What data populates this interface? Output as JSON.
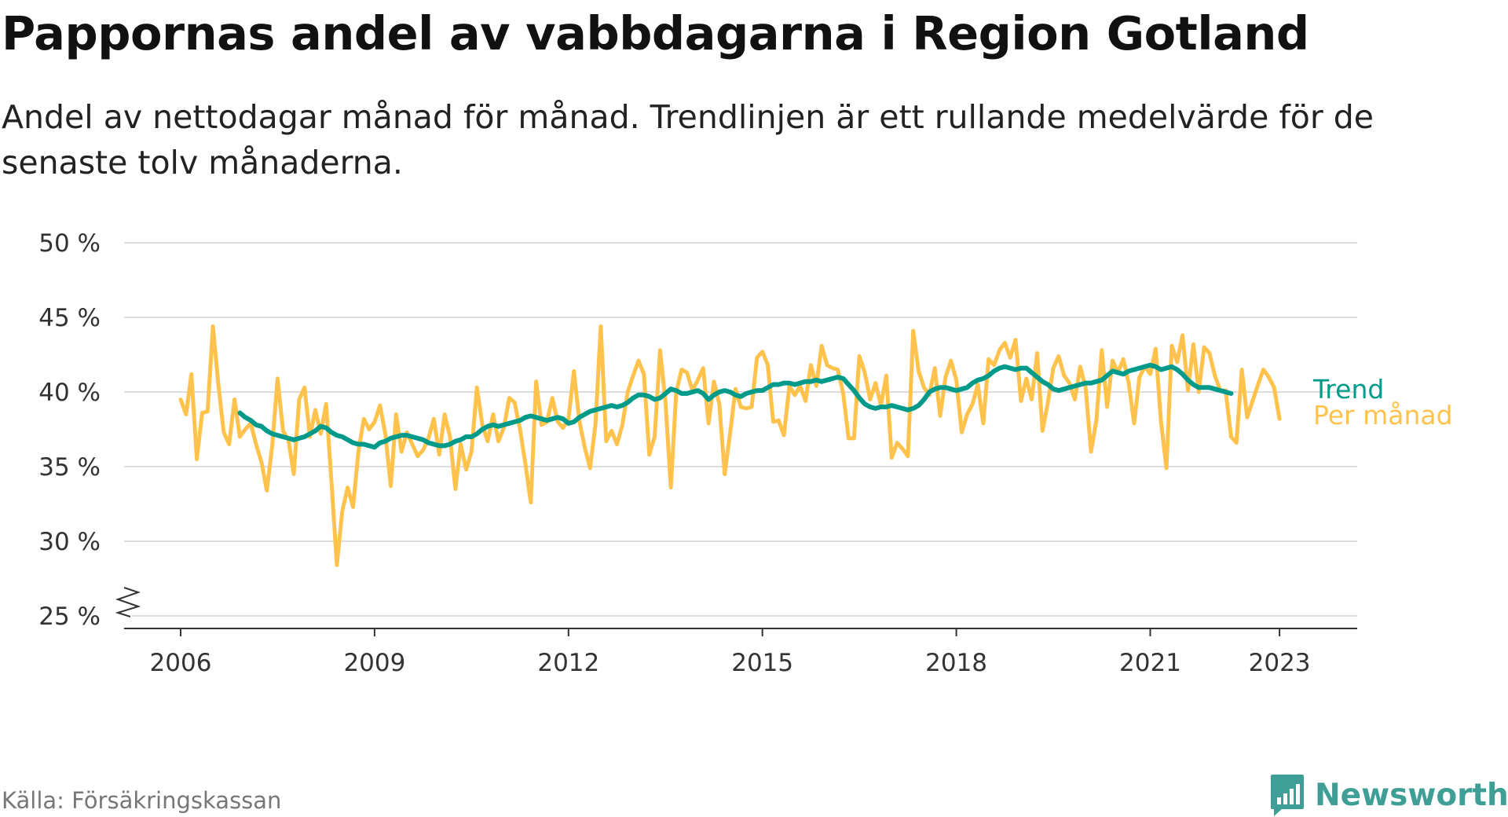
{
  "title": "Pappornas andel av vabbdagarna i Region Gotland",
  "subtitle": "Andel av nettodagar månad för månad. Trendlinjen är ett rullande medelvärde för de senaste tolv månaderna.",
  "source": "Källa: Försäkringskassan",
  "brand": "Newsworthy",
  "colors": {
    "monthly": "#ffc34d",
    "trend": "#009a8a",
    "grid": "#dddddd",
    "axis": "#333333",
    "brand": "#3f9f96"
  },
  "chart_data": {
    "type": "line",
    "title": "Pappornas andel av vabbdagarna i Region Gotland",
    "x_unit": "year (decimal, monthly points)",
    "y_unit": "%",
    "ylim": [
      25,
      50
    ],
    "y_axis_break": true,
    "yticks": [
      25,
      30,
      35,
      40,
      45,
      50
    ],
    "ytick_labels": [
      "25 %",
      "30 %",
      "35 %",
      "40 %",
      "45 %",
      "50 %"
    ],
    "xticks": [
      2006,
      2009,
      2012,
      2015,
      2018,
      2021,
      2023
    ],
    "xtick_labels": [
      "2006",
      "2009",
      "2012",
      "2015",
      "2018",
      "2021",
      "2023"
    ],
    "grid": true,
    "legend": "end-of-line labels, right",
    "series": [
      {
        "name": "Per månad",
        "color": "#ffc34d",
        "start": 2006.0,
        "step": 0.0833333,
        "values": [
          39.5,
          38.5,
          41.2,
          35.5,
          38.6,
          38.7,
          44.4,
          40.5,
          37.3,
          36.5,
          39.5,
          37.0,
          37.5,
          37.9,
          36.5,
          35.3,
          33.4,
          36.4,
          40.9,
          37.4,
          36.8,
          34.5,
          39.5,
          40.3,
          37.0,
          38.8,
          37.2,
          39.2,
          34.0,
          28.4,
          32.0,
          33.6,
          32.3,
          36.0,
          38.2,
          37.5,
          38.0,
          39.1,
          37.2,
          33.7,
          38.5,
          36.0,
          37.3,
          36.5,
          35.7,
          36.1,
          36.9,
          38.2,
          35.8,
          38.5,
          37.0,
          33.5,
          36.5,
          34.8,
          36.0,
          40.3,
          37.8,
          36.7,
          38.5,
          36.7,
          37.6,
          39.6,
          39.3,
          37.5,
          35.2,
          32.6,
          40.7,
          37.8,
          38.0,
          39.6,
          38.0,
          37.6,
          38.2,
          41.4,
          38.1,
          36.3,
          34.9,
          37.8,
          44.4,
          36.7,
          37.4,
          36.5,
          37.8,
          40.0,
          41.1,
          42.1,
          41.2,
          35.8,
          37.0,
          42.8,
          39.4,
          33.6,
          40.0,
          41.5,
          41.3,
          40.1,
          40.8,
          41.6,
          37.9,
          40.7,
          39.2,
          34.5,
          37.2,
          40.2,
          39.0,
          38.9,
          39.0,
          42.3,
          42.7,
          41.8,
          38.0,
          38.1,
          37.1,
          40.4,
          39.8,
          40.4,
          39.4,
          41.8,
          40.4,
          43.1,
          41.8,
          41.6,
          41.5,
          39.9,
          36.9,
          36.9,
          42.4,
          41.3,
          39.5,
          40.6,
          39.1,
          41.1,
          35.6,
          36.6,
          36.2,
          35.7,
          44.1,
          41.4,
          40.3,
          39.8,
          41.6,
          38.4,
          41.0,
          42.1,
          40.8,
          37.3,
          38.5,
          39.2,
          40.5,
          37.9,
          42.2,
          41.8,
          42.8,
          43.3,
          42.3,
          43.5,
          39.4,
          40.9,
          39.5,
          42.6,
          37.4,
          39.3,
          41.6,
          42.4,
          41.1,
          40.6,
          39.5,
          41.7,
          40.3,
          36.0,
          38.1,
          42.8,
          39.0,
          42.1,
          41.3,
          42.2,
          40.6,
          37.9,
          41.0,
          41.7,
          41.2,
          42.9,
          38.0,
          34.9,
          43.1,
          42.0,
          43.8,
          40.1,
          43.2,
          40.0,
          43.0,
          42.6,
          41.1,
          40.1,
          40.1,
          37.0,
          36.6,
          41.5,
          38.3,
          39.4,
          40.5,
          41.5,
          41.0,
          40.3,
          38.2
        ]
      },
      {
        "name": "Trend",
        "color": "#009a8a",
        "start": 2006.9167,
        "step": 0.0833333,
        "values": [
          38.6,
          38.3,
          38.1,
          37.8,
          37.7,
          37.4,
          37.2,
          37.1,
          37.0,
          36.9,
          36.8,
          36.9,
          37.0,
          37.2,
          37.4,
          37.7,
          37.6,
          37.3,
          37.1,
          37.0,
          36.8,
          36.6,
          36.5,
          36.5,
          36.4,
          36.3,
          36.6,
          36.7,
          36.9,
          37.0,
          37.1,
          37.1,
          37.0,
          36.9,
          36.8,
          36.6,
          36.5,
          36.4,
          36.4,
          36.5,
          36.7,
          36.8,
          37.0,
          37.0,
          37.2,
          37.5,
          37.7,
          37.8,
          37.7,
          37.8,
          37.9,
          38.0,
          38.1,
          38.3,
          38.4,
          38.3,
          38.2,
          38.1,
          38.2,
          38.3,
          38.2,
          37.9,
          38.0,
          38.3,
          38.5,
          38.7,
          38.8,
          38.9,
          39.0,
          39.1,
          39.0,
          39.1,
          39.3,
          39.6,
          39.8,
          39.8,
          39.7,
          39.5,
          39.6,
          39.9,
          40.2,
          40.1,
          39.9,
          39.9,
          40.0,
          40.1,
          39.9,
          39.5,
          39.8,
          40.0,
          40.1,
          40.0,
          39.8,
          39.7,
          39.9,
          40.0,
          40.1,
          40.1,
          40.3,
          40.5,
          40.5,
          40.6,
          40.6,
          40.5,
          40.6,
          40.7,
          40.7,
          40.8,
          40.7,
          40.8,
          40.9,
          41.0,
          40.9,
          40.5,
          40.1,
          39.6,
          39.2,
          39.0,
          38.9,
          39.0,
          39.0,
          39.1,
          39.0,
          38.9,
          38.8,
          38.9,
          39.1,
          39.5,
          40.0,
          40.2,
          40.3,
          40.3,
          40.2,
          40.1,
          40.2,
          40.3,
          40.6,
          40.8,
          40.9,
          41.1,
          41.4,
          41.6,
          41.7,
          41.6,
          41.5,
          41.6,
          41.6,
          41.3,
          41.0,
          40.7,
          40.5,
          40.2,
          40.1,
          40.2,
          40.3,
          40.4,
          40.5,
          40.6,
          40.6,
          40.7,
          40.8,
          41.1,
          41.4,
          41.3,
          41.2,
          41.4,
          41.5,
          41.6,
          41.7,
          41.8,
          41.7,
          41.5,
          41.6,
          41.7,
          41.5,
          41.2,
          40.8,
          40.5,
          40.3,
          40.3,
          40.3,
          40.2,
          40.1,
          40.0,
          39.9
        ]
      }
    ]
  }
}
